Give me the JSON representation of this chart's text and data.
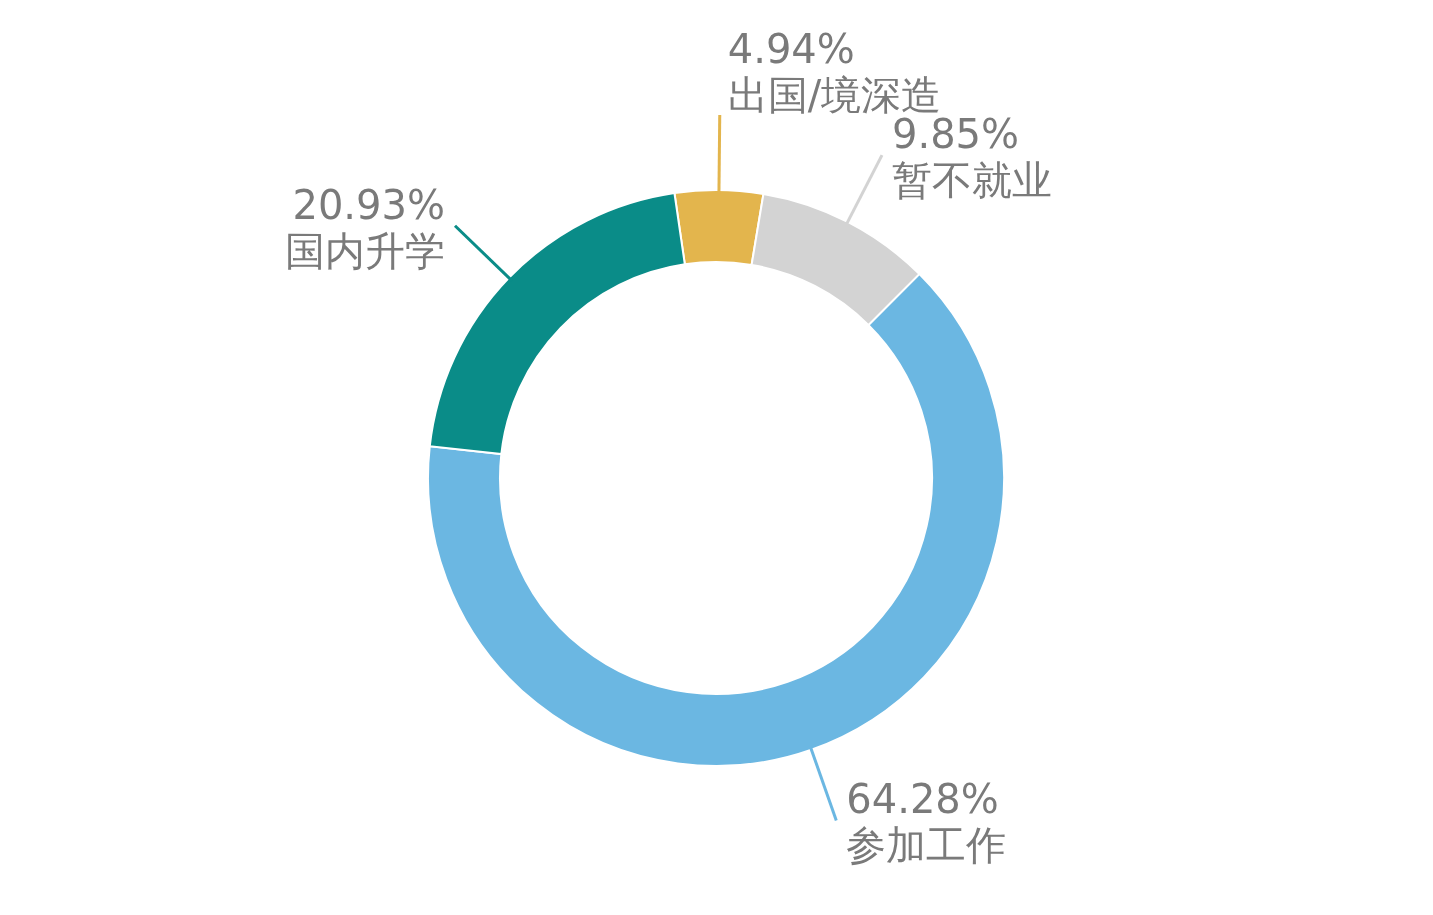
{
  "chart_data": {
    "type": "donut",
    "categories": [
      "出国/境深造",
      "暂不就业",
      "参加工作",
      "国内升学"
    ],
    "values": [
      4.94,
      9.85,
      64.28,
      20.93
    ],
    "value_labels": [
      "4.94%",
      "9.85%",
      "64.28%",
      "20.93%"
    ],
    "colors": [
      "#e3b54d",
      "#d3d3d3",
      "#6bb7e2",
      "#0a8c88"
    ]
  }
}
